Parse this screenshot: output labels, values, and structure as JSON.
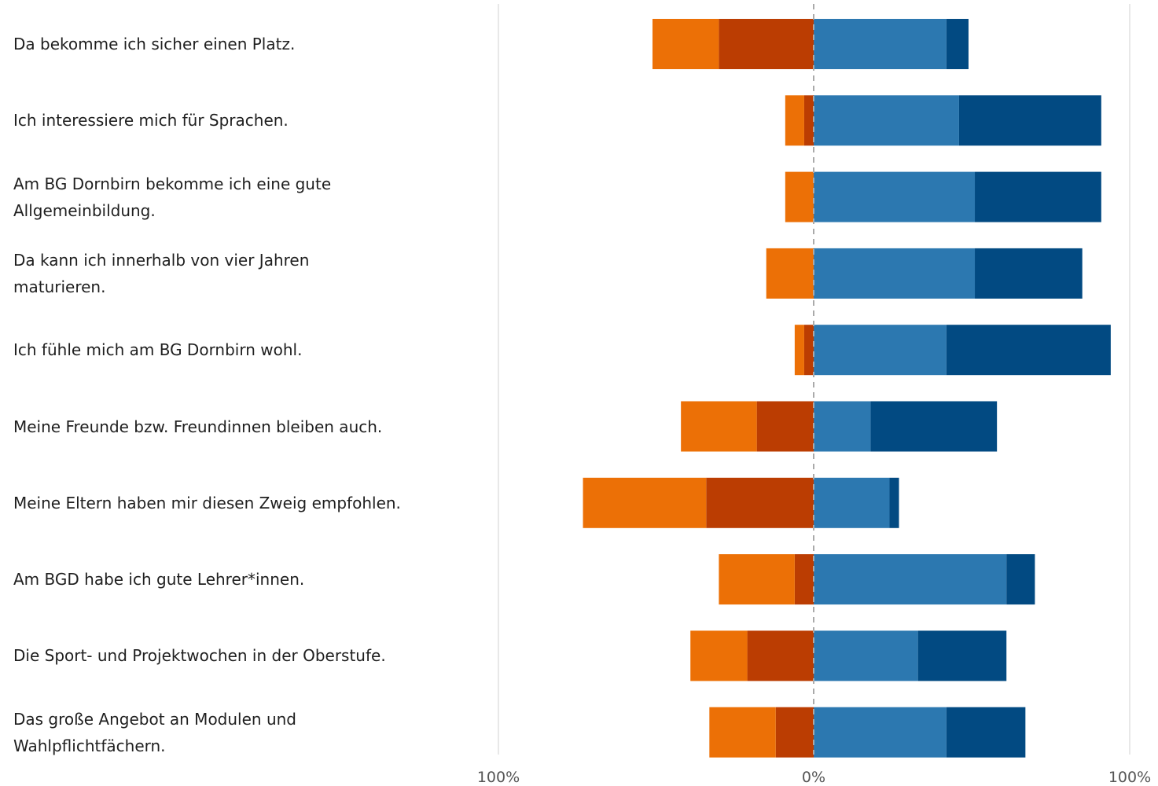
{
  "chart_data": {
    "type": "bar",
    "orientation": "horizontal",
    "stacking": "diverging",
    "categories": [
      "Da bekomme ich sicher einen Platz.",
      "Ich interessiere mich für Sprachen.",
      "Am BG Dornbirn bekomme ich eine gute Allgemeinbildung.",
      "Da kann ich innerhalb von vier Jahren maturieren.",
      "Ich fühle mich am BG Dornbirn wohl.",
      "Meine Freunde bzw. Freundinnen bleiben auch.",
      "Meine Eltern haben mir diesen Zweig empfohlen.",
      "Am BGD habe ich gute Lehrer*innen.",
      "Die Sport- und Projektwochen in der Oberstufe.",
      "Das große Angebot an Modulen und Wahlpflichtfächern."
    ],
    "series": [
      {
        "side": "negative",
        "color": "#bb3d02",
        "values": [
          30,
          3,
          0,
          0,
          3,
          18,
          34,
          6,
          21,
          12
        ]
      },
      {
        "side": "negative",
        "color": "#ec7006",
        "values": [
          21,
          6,
          9,
          15,
          3,
          24,
          39,
          24,
          18,
          21
        ]
      },
      {
        "side": "positive",
        "color": "#2c78b0",
        "values": [
          42,
          46,
          51,
          51,
          42,
          18,
          24,
          61,
          33,
          42
        ]
      },
      {
        "side": "positive",
        "color": "#024a82",
        "values": [
          7,
          45,
          40,
          34,
          52,
          40,
          3,
          9,
          28,
          25
        ]
      }
    ],
    "xlim": [
      -100,
      100
    ],
    "x_ticks": [
      "100%",
      "0%",
      "100%"
    ],
    "grid": true,
    "legend": "none",
    "title": "",
    "xlabel": "",
    "ylabel": ""
  }
}
